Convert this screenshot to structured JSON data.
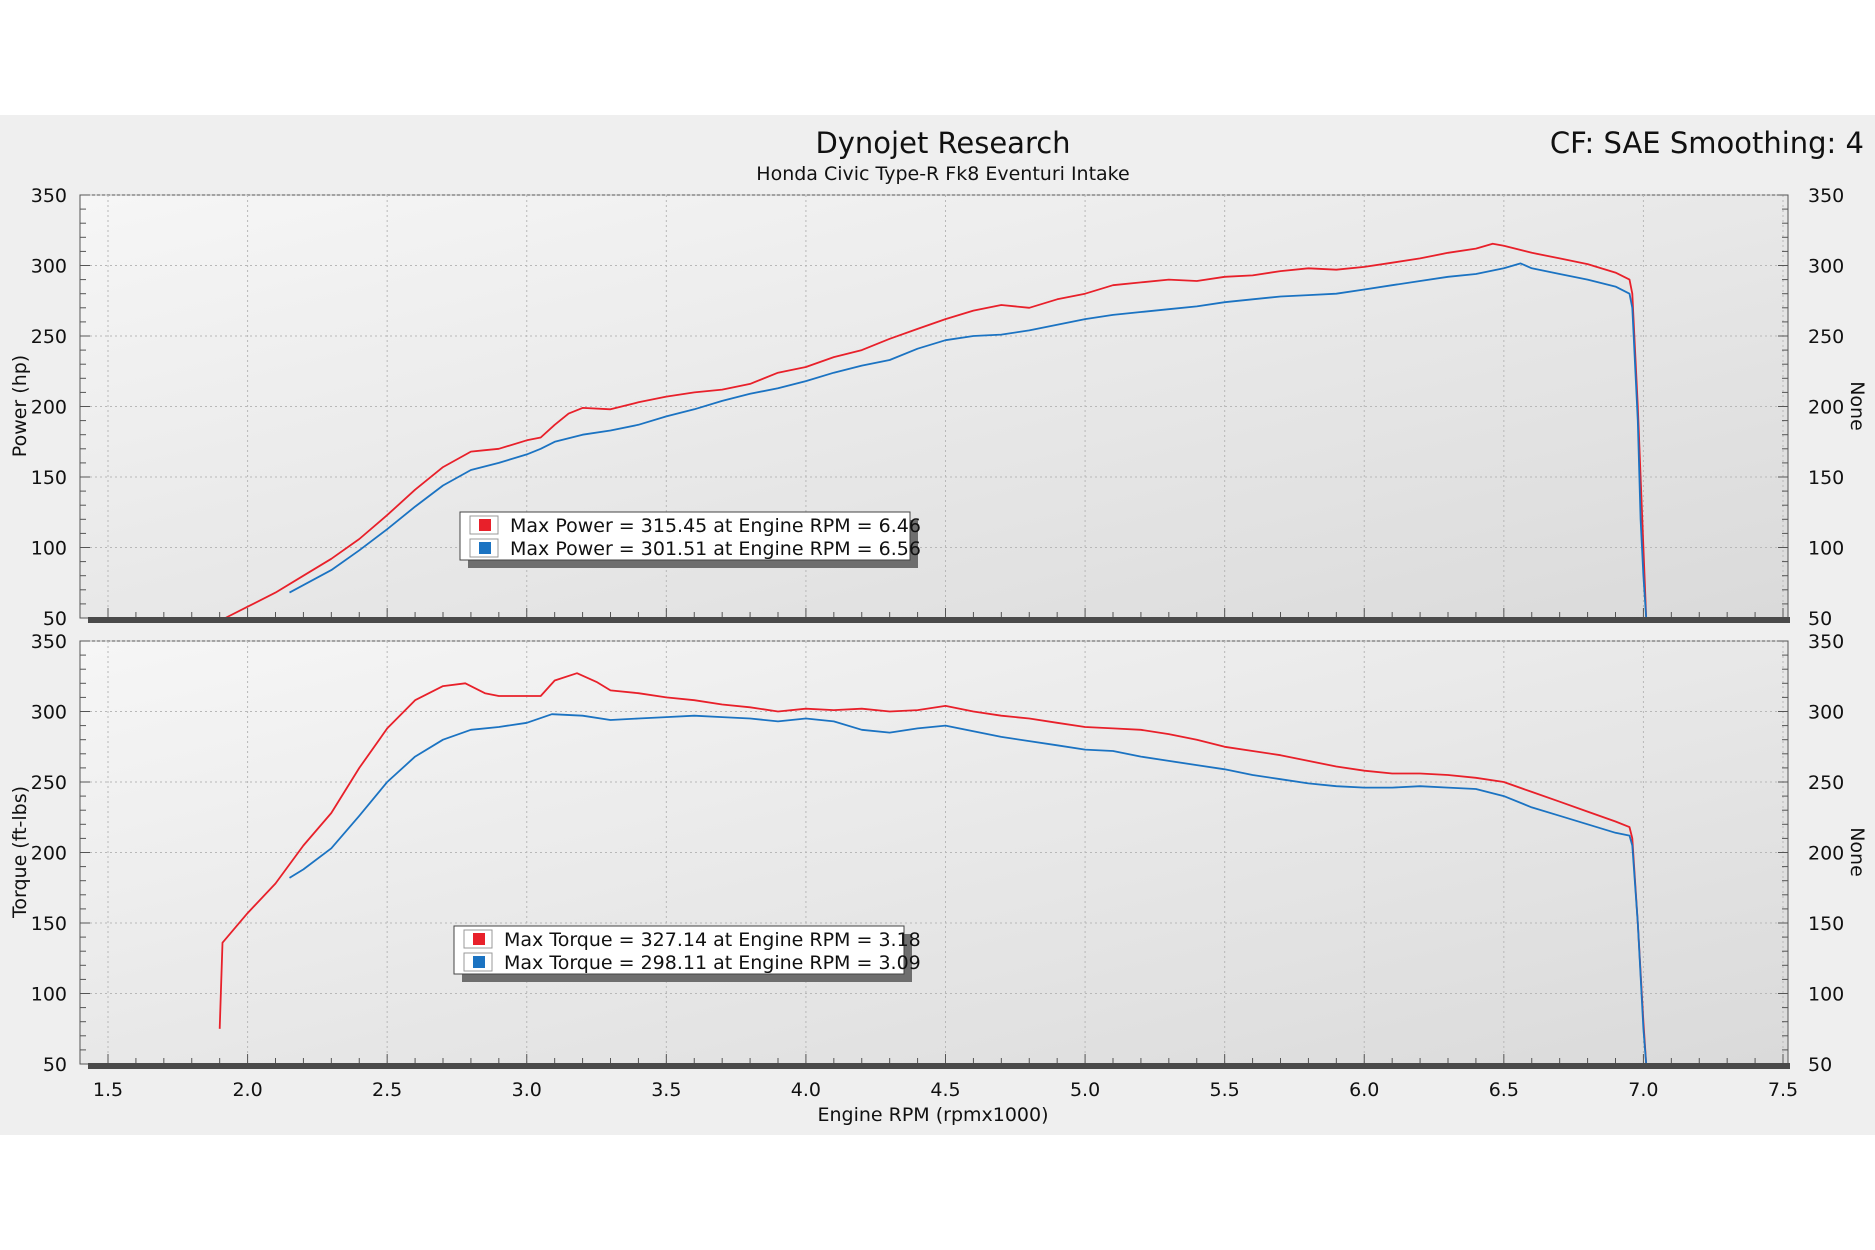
{
  "header": {
    "title": "Dynojet Research",
    "subtitle": "Honda Civic Type-R Fk8 Eventuri Intake",
    "cf_label": "CF: SAE Smoothing: 4"
  },
  "chart_data": [
    {
      "type": "line",
      "title": "Dynojet Research",
      "subtitle": "Honda Civic Type-R Fk8 Eventuri Intake",
      "xlabel": "Engine RPM (rpmx1000)",
      "ylabel": "Power (hp)",
      "ylabel_right": "None",
      "xlim": [
        1.5,
        7.5
      ],
      "ylim": [
        50,
        350
      ],
      "x_ticks": [
        "1.5",
        "2.0",
        "2.5",
        "3.0",
        "3.5",
        "4.0",
        "4.5",
        "5.0",
        "5.5",
        "6.0",
        "6.5",
        "7.0",
        "7.5"
      ],
      "y_ticks": [
        "50",
        "100",
        "150",
        "200",
        "250",
        "300",
        "350"
      ],
      "grid": true,
      "legend_position": "center-left",
      "series": [
        {
          "color": "#e8202a",
          "legend": "Max Power = 315.45 at Engine RPM = 6.46",
          "points": [
            [
              1.92,
              50
            ],
            [
              2.0,
              58
            ],
            [
              2.1,
              68
            ],
            [
              2.2,
              80
            ],
            [
              2.3,
              92
            ],
            [
              2.4,
              106
            ],
            [
              2.5,
              123
            ],
            [
              2.6,
              141
            ],
            [
              2.7,
              157
            ],
            [
              2.8,
              168
            ],
            [
              2.85,
              169
            ],
            [
              2.9,
              170
            ],
            [
              3.0,
              176
            ],
            [
              3.05,
              178
            ],
            [
              3.1,
              187
            ],
            [
              3.15,
              195
            ],
            [
              3.2,
              199
            ],
            [
              3.3,
              198
            ],
            [
              3.4,
              203
            ],
            [
              3.5,
              207
            ],
            [
              3.6,
              210
            ],
            [
              3.7,
              212
            ],
            [
              3.8,
              216
            ],
            [
              3.9,
              224
            ],
            [
              4.0,
              228
            ],
            [
              4.1,
              235
            ],
            [
              4.2,
              240
            ],
            [
              4.3,
              248
            ],
            [
              4.4,
              255
            ],
            [
              4.5,
              262
            ],
            [
              4.6,
              268
            ],
            [
              4.7,
              272
            ],
            [
              4.8,
              270
            ],
            [
              4.9,
              276
            ],
            [
              5.0,
              280
            ],
            [
              5.1,
              286
            ],
            [
              5.2,
              288
            ],
            [
              5.3,
              290
            ],
            [
              5.4,
              289
            ],
            [
              5.5,
              292
            ],
            [
              5.6,
              293
            ],
            [
              5.7,
              296
            ],
            [
              5.8,
              298
            ],
            [
              5.9,
              297
            ],
            [
              6.0,
              299
            ],
            [
              6.1,
              302
            ],
            [
              6.2,
              305
            ],
            [
              6.3,
              309
            ],
            [
              6.4,
              312
            ],
            [
              6.46,
              315.45
            ],
            [
              6.5,
              314
            ],
            [
              6.6,
              309
            ],
            [
              6.7,
              305
            ],
            [
              6.8,
              301
            ],
            [
              6.9,
              295
            ],
            [
              6.95,
              290
            ],
            [
              6.96,
              280
            ],
            [
              6.98,
              200
            ],
            [
              7.0,
              100
            ],
            [
              7.01,
              50
            ]
          ]
        },
        {
          "color": "#1b73c2",
          "legend": "Max Power = 301.51 at Engine RPM = 6.56",
          "points": [
            [
              2.15,
              68
            ],
            [
              2.3,
              84
            ],
            [
              2.4,
              98
            ],
            [
              2.5,
              113
            ],
            [
              2.6,
              129
            ],
            [
              2.7,
              144
            ],
            [
              2.8,
              155
            ],
            [
              2.9,
              160
            ],
            [
              3.0,
              166
            ],
            [
              3.05,
              170
            ],
            [
              3.1,
              175
            ],
            [
              3.2,
              180
            ],
            [
              3.3,
              183
            ],
            [
              3.4,
              187
            ],
            [
              3.5,
              193
            ],
            [
              3.6,
              198
            ],
            [
              3.7,
              204
            ],
            [
              3.8,
              209
            ],
            [
              3.9,
              213
            ],
            [
              4.0,
              218
            ],
            [
              4.1,
              224
            ],
            [
              4.2,
              229
            ],
            [
              4.3,
              233
            ],
            [
              4.4,
              241
            ],
            [
              4.5,
              247
            ],
            [
              4.6,
              250
            ],
            [
              4.7,
              251
            ],
            [
              4.8,
              254
            ],
            [
              4.9,
              258
            ],
            [
              5.0,
              262
            ],
            [
              5.1,
              265
            ],
            [
              5.2,
              267
            ],
            [
              5.3,
              269
            ],
            [
              5.4,
              271
            ],
            [
              5.5,
              274
            ],
            [
              5.6,
              276
            ],
            [
              5.7,
              278
            ],
            [
              5.8,
              279
            ],
            [
              5.9,
              280
            ],
            [
              6.0,
              283
            ],
            [
              6.1,
              286
            ],
            [
              6.2,
              289
            ],
            [
              6.3,
              292
            ],
            [
              6.4,
              294
            ],
            [
              6.5,
              298
            ],
            [
              6.56,
              301.51
            ],
            [
              6.6,
              298
            ],
            [
              6.7,
              294
            ],
            [
              6.8,
              290
            ],
            [
              6.9,
              285
            ],
            [
              6.95,
              280
            ],
            [
              6.96,
              270
            ],
            [
              6.98,
              190
            ],
            [
              6.99,
              120
            ],
            [
              7.0,
              80
            ],
            [
              7.01,
              50
            ]
          ]
        }
      ]
    },
    {
      "type": "line",
      "xlabel": "Engine RPM (rpmx1000)",
      "ylabel": "Torque (ft-lbs)",
      "ylabel_right": "None",
      "xlim": [
        1.5,
        7.5
      ],
      "ylim": [
        50,
        350
      ],
      "x_ticks": [
        "1.5",
        "2.0",
        "2.5",
        "3.0",
        "3.5",
        "4.0",
        "4.5",
        "5.0",
        "5.5",
        "6.0",
        "6.5",
        "7.0",
        "7.5"
      ],
      "y_ticks": [
        "50",
        "100",
        "150",
        "200",
        "250",
        "300",
        "350"
      ],
      "grid": true,
      "legend_position": "center-left",
      "series": [
        {
          "color": "#e8202a",
          "legend": "Max Torque = 327.14 at Engine RPM = 3.18",
          "points": [
            [
              1.9,
              75
            ],
            [
              1.91,
              136
            ],
            [
              2.0,
              157
            ],
            [
              2.1,
              178
            ],
            [
              2.2,
              205
            ],
            [
              2.3,
              228
            ],
            [
              2.4,
              260
            ],
            [
              2.5,
              288
            ],
            [
              2.6,
              308
            ],
            [
              2.7,
              318
            ],
            [
              2.78,
              320
            ],
            [
              2.85,
              313
            ],
            [
              2.9,
              311
            ],
            [
              3.0,
              311
            ],
            [
              3.05,
              311
            ],
            [
              3.1,
              322
            ],
            [
              3.18,
              327.14
            ],
            [
              3.25,
              321
            ],
            [
              3.3,
              315
            ],
            [
              3.4,
              313
            ],
            [
              3.5,
              310
            ],
            [
              3.6,
              308
            ],
            [
              3.7,
              305
            ],
            [
              3.8,
              303
            ],
            [
              3.9,
              300
            ],
            [
              4.0,
              302
            ],
            [
              4.1,
              301
            ],
            [
              4.2,
              302
            ],
            [
              4.3,
              300
            ],
            [
              4.4,
              301
            ],
            [
              4.5,
              304
            ],
            [
              4.6,
              300
            ],
            [
              4.7,
              297
            ],
            [
              4.8,
              295
            ],
            [
              4.9,
              292
            ],
            [
              5.0,
              289
            ],
            [
              5.1,
              288
            ],
            [
              5.2,
              287
            ],
            [
              5.3,
              284
            ],
            [
              5.4,
              280
            ],
            [
              5.5,
              275
            ],
            [
              5.6,
              272
            ],
            [
              5.7,
              269
            ],
            [
              5.8,
              265
            ],
            [
              5.9,
              261
            ],
            [
              6.0,
              258
            ],
            [
              6.1,
              256
            ],
            [
              6.2,
              256
            ],
            [
              6.3,
              255
            ],
            [
              6.4,
              253
            ],
            [
              6.5,
              250
            ],
            [
              6.6,
              243
            ],
            [
              6.7,
              236
            ],
            [
              6.8,
              229
            ],
            [
              6.9,
              222
            ],
            [
              6.95,
              218
            ],
            [
              6.96,
              210
            ],
            [
              6.98,
              150
            ],
            [
              7.0,
              80
            ],
            [
              7.01,
              50
            ]
          ]
        },
        {
          "color": "#1b73c2",
          "legend": "Max Torque = 298.11 at Engine RPM = 3.09",
          "points": [
            [
              2.15,
              182
            ],
            [
              2.2,
              188
            ],
            [
              2.3,
              203
            ],
            [
              2.4,
              226
            ],
            [
              2.5,
              250
            ],
            [
              2.6,
              268
            ],
            [
              2.7,
              280
            ],
            [
              2.8,
              287
            ],
            [
              2.9,
              289
            ],
            [
              3.0,
              292
            ],
            [
              3.09,
              298.11
            ],
            [
              3.2,
              297
            ],
            [
              3.3,
              294
            ],
            [
              3.4,
              295
            ],
            [
              3.5,
              296
            ],
            [
              3.6,
              297
            ],
            [
              3.7,
              296
            ],
            [
              3.8,
              295
            ],
            [
              3.9,
              293
            ],
            [
              4.0,
              295
            ],
            [
              4.1,
              293
            ],
            [
              4.2,
              287
            ],
            [
              4.3,
              285
            ],
            [
              4.4,
              288
            ],
            [
              4.5,
              290
            ],
            [
              4.6,
              286
            ],
            [
              4.7,
              282
            ],
            [
              4.8,
              279
            ],
            [
              4.9,
              276
            ],
            [
              5.0,
              273
            ],
            [
              5.1,
              272
            ],
            [
              5.2,
              268
            ],
            [
              5.3,
              265
            ],
            [
              5.4,
              262
            ],
            [
              5.5,
              259
            ],
            [
              5.6,
              255
            ],
            [
              5.7,
              252
            ],
            [
              5.8,
              249
            ],
            [
              5.9,
              247
            ],
            [
              6.0,
              246
            ],
            [
              6.1,
              246
            ],
            [
              6.2,
              247
            ],
            [
              6.3,
              246
            ],
            [
              6.4,
              245
            ],
            [
              6.5,
              240
            ],
            [
              6.6,
              232
            ],
            [
              6.7,
              226
            ],
            [
              6.8,
              220
            ],
            [
              6.9,
              214
            ],
            [
              6.95,
              212
            ],
            [
              6.96,
              205
            ],
            [
              6.98,
              150
            ],
            [
              7.0,
              75
            ],
            [
              7.01,
              50
            ]
          ]
        }
      ]
    }
  ]
}
